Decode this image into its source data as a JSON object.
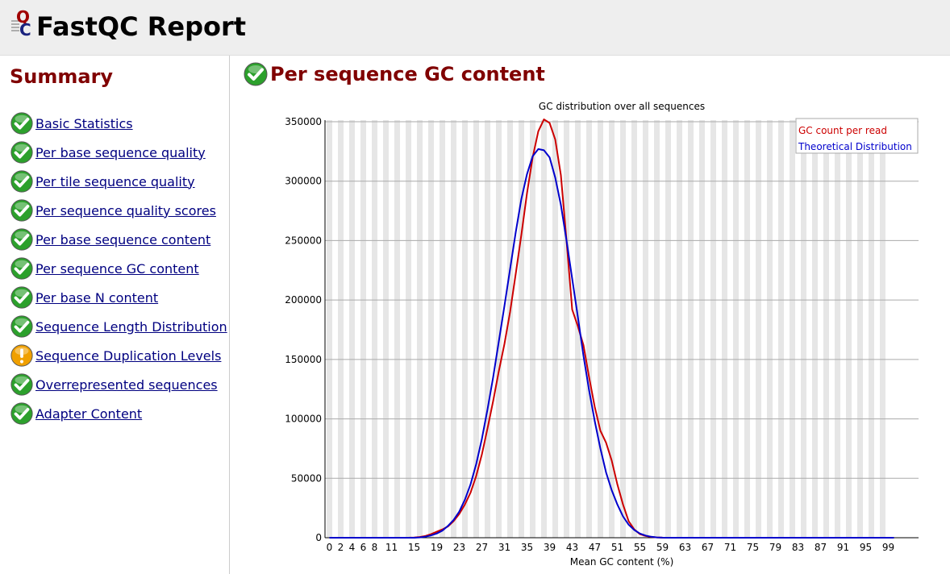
{
  "header": {
    "title": "FastQC Report",
    "logo_icon": "fastqc-logo-icon"
  },
  "sidebar": {
    "title": "Summary",
    "items": [
      {
        "label": "Basic Statistics",
        "status": "pass"
      },
      {
        "label": "Per base sequence quality",
        "status": "pass"
      },
      {
        "label": "Per tile sequence quality",
        "status": "pass"
      },
      {
        "label": "Per sequence quality scores",
        "status": "pass"
      },
      {
        "label": "Per base sequence content",
        "status": "pass"
      },
      {
        "label": "Per sequence GC content",
        "status": "pass"
      },
      {
        "label": "Per base N content",
        "status": "pass"
      },
      {
        "label": "Sequence Length Distribution",
        "status": "pass"
      },
      {
        "label": "Sequence Duplication Levels",
        "status": "warn"
      },
      {
        "label": "Overrepresented sequences",
        "status": "pass"
      },
      {
        "label": "Adapter Content",
        "status": "pass"
      }
    ]
  },
  "module": {
    "title": "Per sequence GC content",
    "status": "pass"
  },
  "colors": {
    "pass": "#2ca02c",
    "warn": "#f0a000",
    "summary_title": "#800000",
    "link": "#000080"
  },
  "chart_data": {
    "type": "line",
    "title": "GC distribution over all sequences",
    "xlabel": "Mean GC content (%)",
    "ylabel": "",
    "xlim": [
      0,
      100
    ],
    "ylim": [
      0,
      350000
    ],
    "yticks": [
      0,
      50000,
      100000,
      150000,
      200000,
      250000,
      300000,
      350000
    ],
    "xtick_labels": [
      "0",
      "2",
      "4",
      "6",
      "8",
      "11",
      "15",
      "19",
      "23",
      "27",
      "31",
      "35",
      "39",
      "43",
      "47",
      "51",
      "55",
      "59",
      "63",
      "67",
      "71",
      "75",
      "79",
      "83",
      "87",
      "91",
      "95",
      "99"
    ],
    "grid": "alternating vertical bands",
    "legend_position": "top-right",
    "series": [
      {
        "name": "GC count per read",
        "color": "#cc0000",
        "points": [
          [
            0,
            0
          ],
          [
            14,
            0
          ],
          [
            15,
            200
          ],
          [
            16,
            600
          ],
          [
            17,
            1500
          ],
          [
            18,
            3000
          ],
          [
            19,
            5000
          ],
          [
            20,
            7000
          ],
          [
            21,
            9500
          ],
          [
            22,
            14000
          ],
          [
            23,
            20000
          ],
          [
            24,
            28000
          ],
          [
            25,
            38000
          ],
          [
            26,
            52000
          ],
          [
            27,
            70000
          ],
          [
            28,
            92000
          ],
          [
            29,
            115000
          ],
          [
            30,
            140000
          ],
          [
            31,
            163000
          ],
          [
            32,
            190000
          ],
          [
            33,
            222000
          ],
          [
            34,
            255000
          ],
          [
            35,
            290000
          ],
          [
            36,
            320000
          ],
          [
            37,
            342000
          ],
          [
            38,
            352000
          ],
          [
            39,
            349000
          ],
          [
            40,
            335000
          ],
          [
            41,
            305000
          ],
          [
            42,
            250000
          ],
          [
            43,
            192000
          ],
          [
            44,
            178000
          ],
          [
            45,
            162000
          ],
          [
            46,
            135000
          ],
          [
            47,
            110000
          ],
          [
            48,
            90000
          ],
          [
            49,
            80000
          ],
          [
            50,
            65000
          ],
          [
            51,
            45000
          ],
          [
            52,
            28000
          ],
          [
            53,
            14000
          ],
          [
            54,
            7000
          ],
          [
            55,
            3000
          ],
          [
            56,
            1500
          ],
          [
            57,
            700
          ],
          [
            58,
            300
          ],
          [
            59,
            100
          ],
          [
            60,
            0
          ],
          [
            100,
            0
          ]
        ]
      },
      {
        "name": "Theoretical Distribution",
        "color": "#0000cc",
        "points": [
          [
            0,
            0
          ],
          [
            15,
            0
          ],
          [
            16,
            300
          ],
          [
            17,
            900
          ],
          [
            18,
            2000
          ],
          [
            19,
            3500
          ],
          [
            20,
            6000
          ],
          [
            21,
            10000
          ],
          [
            22,
            15000
          ],
          [
            23,
            22000
          ],
          [
            24,
            32000
          ],
          [
            25,
            45000
          ],
          [
            26,
            62000
          ],
          [
            27,
            83000
          ],
          [
            28,
            108000
          ],
          [
            29,
            135000
          ],
          [
            30,
            165000
          ],
          [
            31,
            195000
          ],
          [
            32,
            226000
          ],
          [
            33,
            257000
          ],
          [
            34,
            285000
          ],
          [
            35,
            306000
          ],
          [
            36,
            321000
          ],
          [
            37,
            327000
          ],
          [
            38,
            326000
          ],
          [
            39,
            320000
          ],
          [
            40,
            303000
          ],
          [
            41,
            280000
          ],
          [
            42,
            250000
          ],
          [
            43,
            218000
          ],
          [
            44,
            186000
          ],
          [
            45,
            153000
          ],
          [
            46,
            124000
          ],
          [
            47,
            98000
          ],
          [
            48,
            75000
          ],
          [
            49,
            55000
          ],
          [
            50,
            40000
          ],
          [
            51,
            28000
          ],
          [
            52,
            18000
          ],
          [
            53,
            11000
          ],
          [
            54,
            6500
          ],
          [
            55,
            3500
          ],
          [
            56,
            1800
          ],
          [
            57,
            800
          ],
          [
            58,
            300
          ],
          [
            59,
            100
          ],
          [
            60,
            0
          ],
          [
            100,
            0
          ]
        ]
      }
    ]
  }
}
